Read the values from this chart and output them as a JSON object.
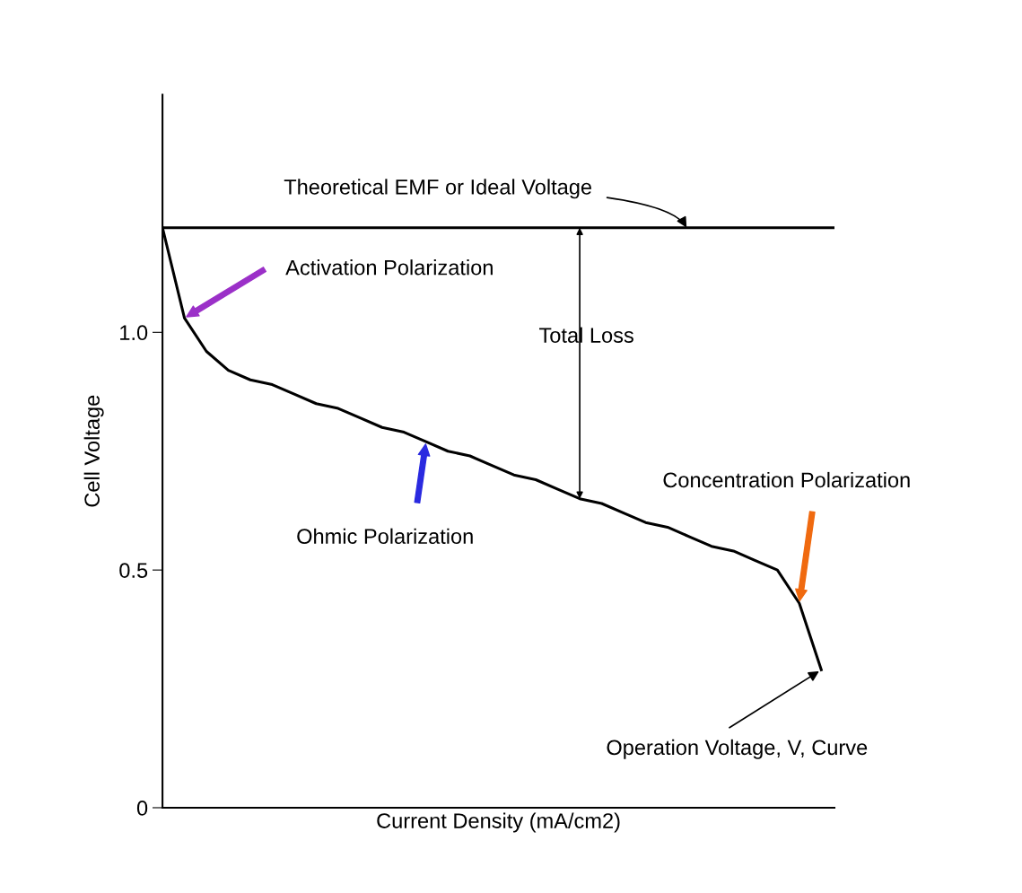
{
  "chart_data": {
    "type": "line",
    "xlabel": "Current Density (mA/cm2)",
    "ylabel": "Cell Voltage",
    "categories": [
      null,
      null,
      null,
      null,
      null,
      null,
      null,
      null,
      null,
      null,
      null,
      null,
      null,
      null,
      null,
      null,
      null,
      null,
      null,
      null,
      null,
      null,
      null,
      null,
      null,
      null,
      null,
      null,
      null,
      null,
      null
    ],
    "series": [
      {
        "color": "#000000",
        "values": [
          1.22,
          1.03,
          0.96,
          0.92,
          0.9,
          0.89,
          0.87,
          0.85,
          0.84,
          0.82,
          0.8,
          0.79,
          0.77,
          0.75,
          0.74,
          0.72,
          0.7,
          0.69,
          0.67,
          0.65,
          0.64,
          0.62,
          0.6,
          0.59,
          0.57,
          0.55,
          0.54,
          0.52,
          0.5,
          0.43,
          0.29
        ]
      }
    ],
    "ylim": [
      0,
      1.5
    ],
    "yticks": [
      0,
      0.5,
      {
        "value": 1.0,
        "label": "1.0"
      }
    ],
    "tick_labels": "y",
    "grid": false,
    "marker": "none",
    "line_style": "solid",
    "ref_lines": [
      {
        "axis": "y",
        "value": 1.22,
        "label": "Theoretical EMF or Ideal Voltage",
        "color": "#000000"
      }
    ],
    "annotations": [
      "Activation Polarization",
      "Total Loss",
      "Ohmic Polarization",
      "Concentration Polarization",
      "Operation Voltage, V, Curve"
    ]
  }
}
